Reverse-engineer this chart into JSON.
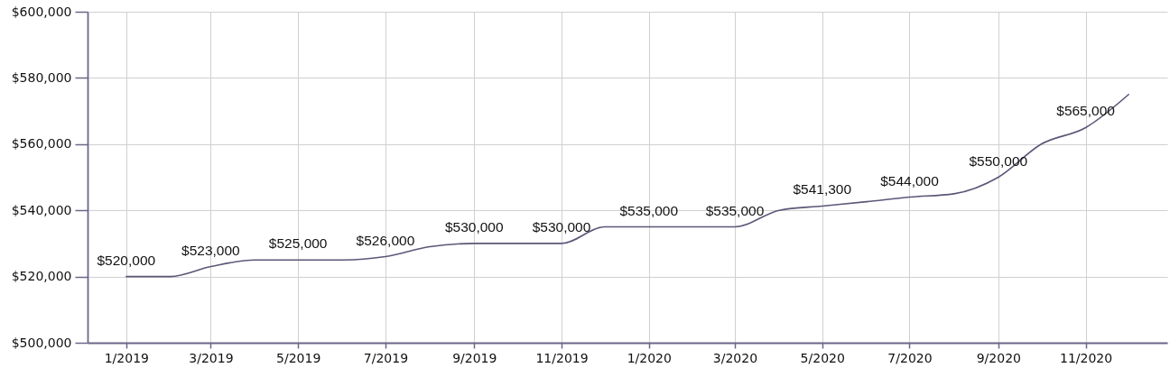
{
  "chart_data": {
    "type": "line",
    "x": [
      "2019-01",
      "2019-02",
      "2019-03",
      "2019-04",
      "2019-05",
      "2019-06",
      "2019-07",
      "2019-08",
      "2019-09",
      "2019-10",
      "2019-11",
      "2019-12",
      "2020-01",
      "2020-02",
      "2020-03",
      "2020-04",
      "2020-05",
      "2020-06",
      "2020-07",
      "2020-08",
      "2020-09",
      "2020-10",
      "2020-11",
      "2020-12"
    ],
    "values": [
      520000,
      520000,
      523000,
      525000,
      525000,
      525000,
      526000,
      529000,
      530000,
      530000,
      530000,
      535000,
      535000,
      535000,
      535000,
      540000,
      541300,
      542600,
      544000,
      545000,
      550000,
      560000,
      565000,
      575000
    ],
    "value_labels": [
      "$520,000",
      null,
      "$523,000",
      null,
      "$525,000",
      null,
      "$526,000",
      null,
      "$530,000",
      null,
      "$530,000",
      null,
      "$535,000",
      null,
      "$535,000",
      null,
      "$541,300",
      null,
      "$544,000",
      null,
      "$550,000",
      null,
      "$565,000",
      null
    ],
    "color": "#5d5677",
    "xlim": [
      "2018-12-05",
      "2020-12-28"
    ],
    "xticks": [
      {
        "value": "2019-01",
        "label": "1/2019"
      },
      {
        "value": "2019-03",
        "label": "3/2019"
      },
      {
        "value": "2019-05",
        "label": "5/2019"
      },
      {
        "value": "2019-07",
        "label": "7/2019"
      },
      {
        "value": "2019-09",
        "label": "9/2019"
      },
      {
        "value": "2019-11",
        "label": "11/2019"
      },
      {
        "value": "2020-01",
        "label": "1/2020"
      },
      {
        "value": "2020-03",
        "label": "3/2020"
      },
      {
        "value": "2020-05",
        "label": "5/2020"
      },
      {
        "value": "2020-07",
        "label": "7/2020"
      },
      {
        "value": "2020-09",
        "label": "9/2020"
      },
      {
        "value": "2020-11",
        "label": "11/2020"
      }
    ],
    "ylim": [
      500000,
      600000
    ],
    "yticks": [
      {
        "value": 500000,
        "label": "$500,000"
      },
      {
        "value": 520000,
        "label": "$520,000"
      },
      {
        "value": 540000,
        "label": "$540,000"
      },
      {
        "value": 560000,
        "label": "$560,000"
      },
      {
        "value": 580000,
        "label": "$580,000"
      },
      {
        "value": 600000,
        "label": "$600,000"
      }
    ],
    "grid": true
  }
}
